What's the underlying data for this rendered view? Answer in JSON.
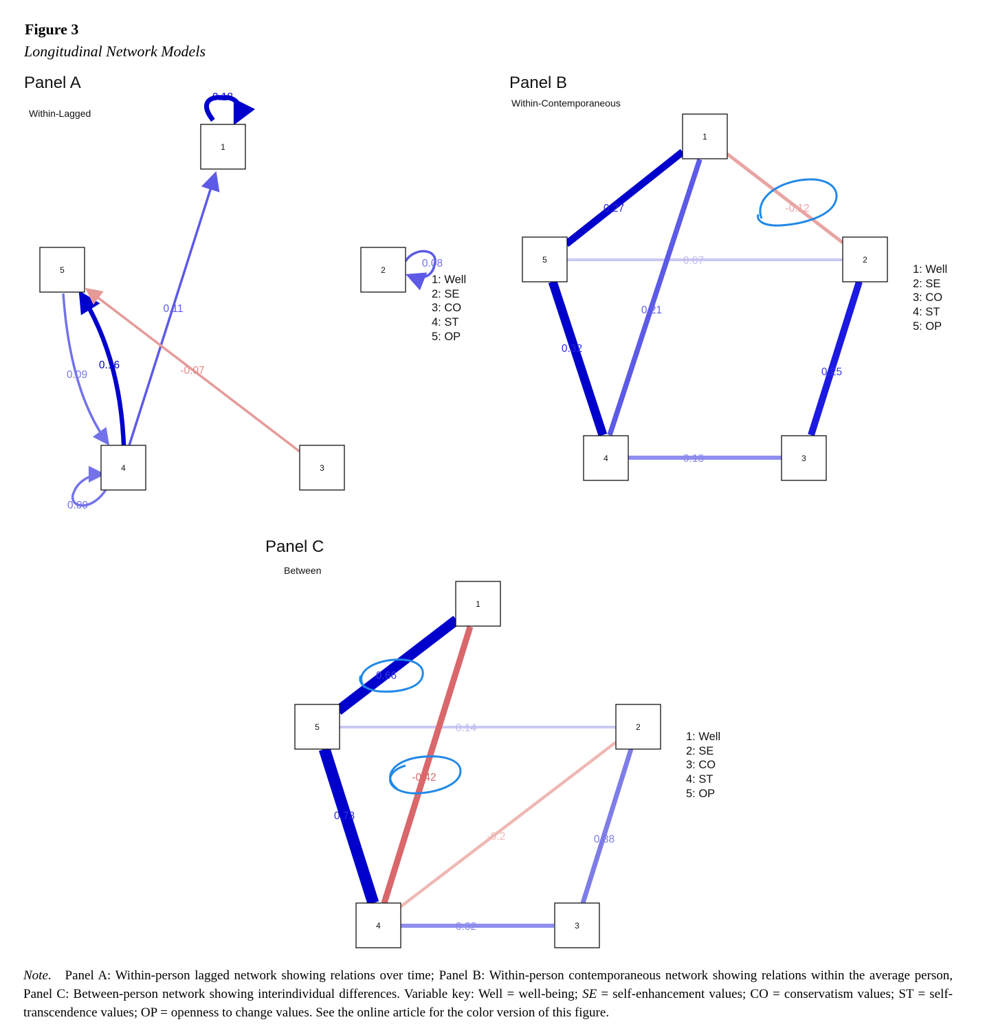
{
  "figure": {
    "number": "Figure 3",
    "title": "Longitudinal Network Models"
  },
  "legend": [
    "1: Well",
    "2: SE",
    "3: CO",
    "4: ST",
    "5: OP"
  ],
  "colors": {
    "positive_strong": "#0000cc",
    "positive_mid": "#5c5ae6",
    "positive_light": "#c9c8f4",
    "negative_strong": "#d9676b",
    "negative_light": "#efb8b4",
    "annotation_circle": "#2188e6"
  },
  "panels": {
    "A": {
      "title": "Panel A",
      "subtitle": "Within-Lagged",
      "nodes": [
        "1",
        "2",
        "3",
        "4",
        "5"
      ],
      "edges": [
        {
          "from": "1",
          "to": "1",
          "label": "0.18"
        },
        {
          "from": "2",
          "to": "2",
          "label": "0.08"
        },
        {
          "from": "4",
          "to": "4",
          "label": "0.09"
        },
        {
          "from": "4",
          "to": "1",
          "label": "0.11"
        },
        {
          "from": "4",
          "to": "5",
          "label": "0.16"
        },
        {
          "from": "5",
          "to": "4",
          "label": "0.09"
        },
        {
          "from": "3",
          "to": "5",
          "label": "-0.07"
        }
      ]
    },
    "B": {
      "title": "Panel B",
      "subtitle": "Within-Contemporaneous",
      "nodes": [
        "1",
        "2",
        "3",
        "4",
        "5"
      ],
      "edges": [
        {
          "from": "1",
          "to": "5",
          "label": "0.27"
        },
        {
          "from": "1",
          "to": "2",
          "label": "-0.12"
        },
        {
          "from": "5",
          "to": "2",
          "label": "0.07"
        },
        {
          "from": "1",
          "to": "4",
          "label": "0.21"
        },
        {
          "from": "5",
          "to": "4",
          "label": "0.32"
        },
        {
          "from": "2",
          "to": "3",
          "label": "0.25"
        },
        {
          "from": "4",
          "to": "3",
          "label": "0.13"
        }
      ]
    },
    "C": {
      "title": "Panel C",
      "subtitle": "Between",
      "nodes": [
        "1",
        "2",
        "3",
        "4",
        "5"
      ],
      "edges": [
        {
          "from": "1",
          "to": "5",
          "label": "0.66"
        },
        {
          "from": "5",
          "to": "2",
          "label": "0.14"
        },
        {
          "from": "1",
          "to": "4",
          "label": "-0.42"
        },
        {
          "from": "5",
          "to": "4",
          "label": "0.73"
        },
        {
          "from": "2",
          "to": "4",
          "label": "-0.2"
        },
        {
          "from": "2",
          "to": "3",
          "label": "0.38"
        },
        {
          "from": "4",
          "to": "3",
          "label": "0.32"
        }
      ]
    }
  },
  "note": {
    "lead": "Note",
    "text": "Panel A: Within-person lagged network showing relations over time; Panel B: Within-person contemporaneous network showing relations within the average person, Panel C: Between-person network showing interindividual differences. Variable key: Well = well-being; ",
    "se_abbr": "SE",
    "text_2": " = self-enhancement values; CO = conservatism values; ST = self-transcendence values; OP = openness to change values. See the online article for the color version of this figure."
  }
}
